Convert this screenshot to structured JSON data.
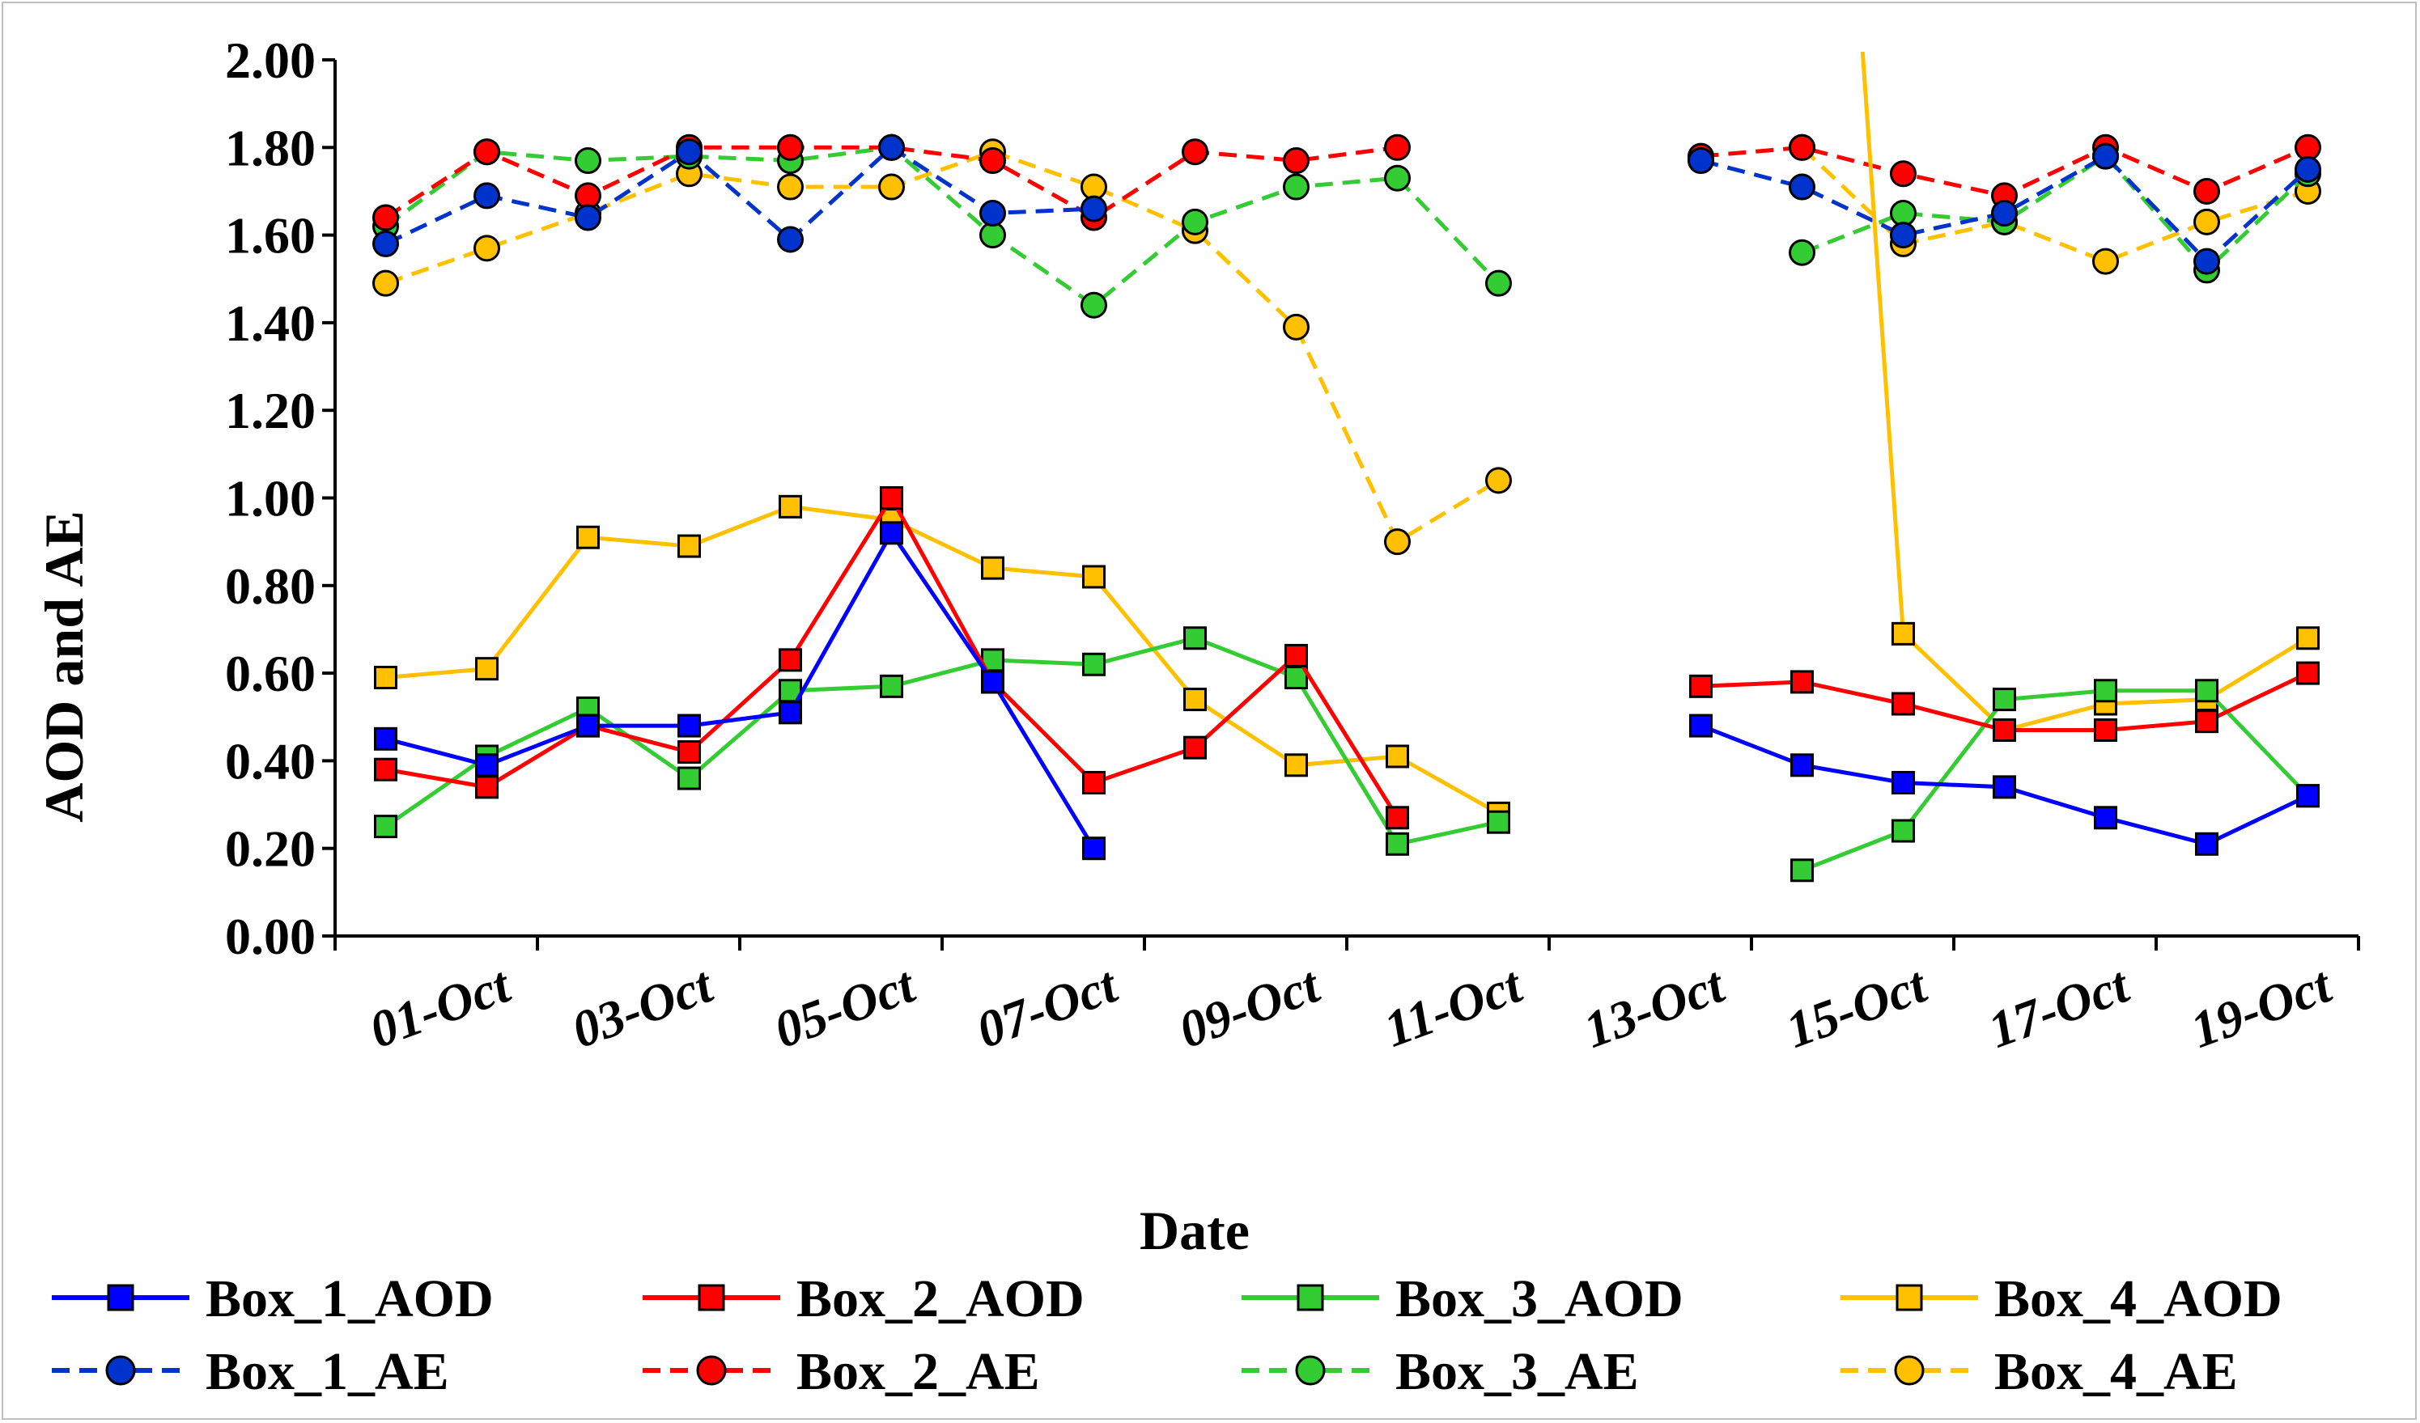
{
  "chart_data": {
    "type": "line",
    "title": "",
    "xlabel": "Date",
    "ylabel": "AOD and AE",
    "ylim": [
      0,
      2
    ],
    "yticks": [
      "0.00",
      "0.20",
      "0.40",
      "0.60",
      "0.80",
      "1.00",
      "1.20",
      "1.40",
      "1.60",
      "1.80",
      "2.00"
    ],
    "x_tick_labels": [
      "01-Oct",
      "03-Oct",
      "05-Oct",
      "07-Oct",
      "09-Oct",
      "11-Oct",
      "13-Oct",
      "15-Oct",
      "17-Oct",
      "19-Oct"
    ],
    "x": [
      "01-Oct",
      "02-Oct",
      "03-Oct",
      "04-Oct",
      "05-Oct",
      "06-Oct",
      "07-Oct",
      "08-Oct",
      "09-Oct",
      "10-Oct",
      "11-Oct",
      "12-Oct",
      "13-Oct",
      "14-Oct",
      "15-Oct",
      "16-Oct",
      "17-Oct",
      "18-Oct",
      "19-Oct",
      "20-Oct"
    ],
    "legend_position": "bottom",
    "grid": false,
    "series": [
      {
        "name": "Box_1_AOD",
        "color": "#0000ff",
        "dashed": false,
        "marker": "square",
        "values": [
          0.45,
          0.39,
          0.48,
          0.48,
          0.51,
          0.92,
          0.58,
          0.2,
          null,
          null,
          null,
          null,
          null,
          0.48,
          0.39,
          0.35,
          0.34,
          0.27,
          0.21,
          0.32
        ]
      },
      {
        "name": "Box_2_AOD",
        "color": "#ff0000",
        "dashed": false,
        "marker": "square",
        "values": [
          0.38,
          0.34,
          0.48,
          0.42,
          0.63,
          1.0,
          0.58,
          0.35,
          0.43,
          0.64,
          0.27,
          null,
          null,
          0.57,
          0.58,
          0.53,
          0.47,
          0.47,
          0.49,
          0.6
        ]
      },
      {
        "name": "Box_3_AOD",
        "color": "#33cc33",
        "dashed": false,
        "marker": "square",
        "values": [
          0.25,
          0.41,
          0.52,
          0.36,
          0.56,
          0.57,
          0.63,
          0.62,
          0.68,
          0.59,
          0.21,
          0.26,
          null,
          null,
          0.15,
          0.24,
          0.54,
          0.56,
          0.56,
          0.32
        ]
      },
      {
        "name": "Box_4_AOD",
        "color": "#ffc000",
        "dashed": false,
        "marker": "square",
        "values": [
          0.59,
          0.61,
          0.91,
          0.89,
          0.98,
          0.95,
          0.84,
          0.82,
          0.54,
          0.39,
          0.41,
          0.28,
          null,
          null,
          4.0,
          0.69,
          0.47,
          0.53,
          0.54,
          0.68
        ]
      },
      {
        "name": "Box_1_AE",
        "color": "#0033cc",
        "dashed": true,
        "marker": "circle",
        "values": [
          1.58,
          1.69,
          1.64,
          1.79,
          1.59,
          1.8,
          1.65,
          1.66,
          null,
          null,
          null,
          null,
          null,
          1.77,
          1.71,
          1.6,
          1.65,
          1.78,
          1.54,
          1.75
        ]
      },
      {
        "name": "Box_2_AE",
        "color": "#ff0000",
        "dashed": true,
        "marker": "circle",
        "values": [
          1.64,
          1.79,
          1.69,
          1.8,
          1.8,
          1.8,
          1.77,
          1.64,
          1.79,
          1.77,
          1.8,
          null,
          null,
          1.78,
          1.8,
          1.74,
          1.69,
          1.8,
          1.7,
          1.8
        ]
      },
      {
        "name": "Box_3_AE",
        "color": "#33cc33",
        "dashed": true,
        "marker": "circle",
        "values": [
          1.62,
          1.79,
          1.77,
          1.78,
          1.77,
          1.8,
          1.6,
          1.44,
          1.63,
          1.71,
          1.73,
          1.49,
          null,
          null,
          1.56,
          1.65,
          1.63,
          1.78,
          1.52,
          1.74
        ]
      },
      {
        "name": "Box_4_AE",
        "color": "#ffc000",
        "dashed": true,
        "marker": "circle",
        "values": [
          1.49,
          1.57,
          1.65,
          1.74,
          1.71,
          1.71,
          1.79,
          1.71,
          1.61,
          1.39,
          0.9,
          1.04,
          null,
          null,
          1.8,
          1.58,
          1.63,
          1.54,
          1.63,
          1.7
        ]
      }
    ]
  }
}
